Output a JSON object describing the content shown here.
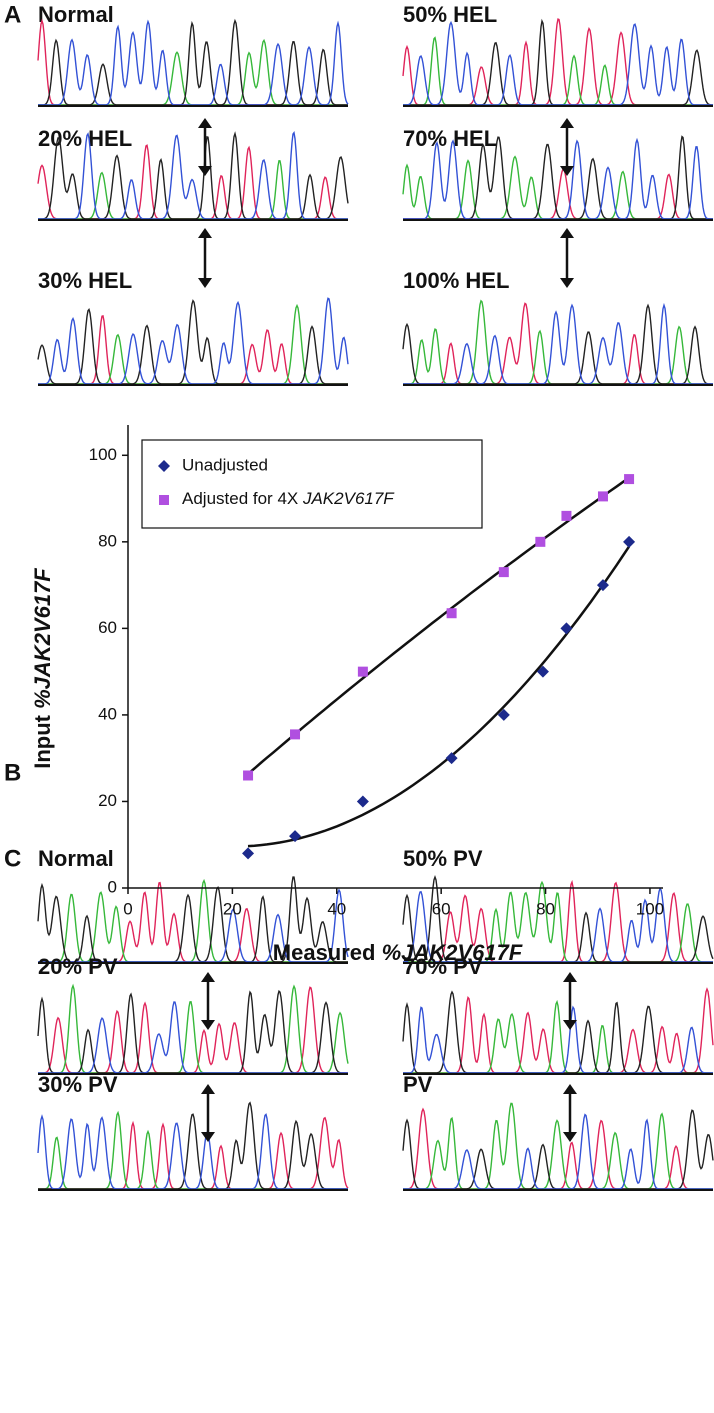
{
  "panels": [
    {
      "label": "A",
      "traces": [
        "Normal",
        "50% HEL",
        "20% HEL",
        "70% HEL",
        "30% HEL",
        "100% HEL"
      ]
    },
    {
      "label": "C",
      "traces": [
        "Normal",
        "50% PV",
        "20% PV",
        "70% PV",
        "30% PV",
        "PV"
      ]
    }
  ],
  "chart_label": "B",
  "chart_data": {
    "type": "scatter",
    "x_label": "Measured %JAK2V617F",
    "y_label": "Input %JAK2V617F",
    "xlim": [
      0,
      102.5
    ],
    "ylim": [
      0,
      107
    ],
    "xticks": [
      0,
      20,
      40,
      60,
      80,
      100
    ],
    "yticks": [
      0,
      20,
      40,
      60,
      80,
      100
    ],
    "legend": "upper left",
    "trend_lines": true,
    "series": [
      {
        "name": "Unadjusted",
        "color": "#1c2a8c",
        "marker": "diamond",
        "x": [
          23,
          32,
          45,
          62,
          72,
          79.5,
          84,
          91,
          96
        ],
        "values": [
          8,
          12,
          20,
          30,
          40,
          50,
          60,
          70,
          80
        ]
      },
      {
        "name": "Adjusted for 4X JAK2V617F",
        "color": "#b04fe0",
        "marker": "square",
        "x": [
          23,
          32,
          45,
          62,
          72,
          79,
          84,
          91,
          96
        ],
        "values": [
          26,
          35.5,
          50,
          63.5,
          73,
          80,
          86,
          90.5,
          94.5
        ]
      }
    ]
  }
}
